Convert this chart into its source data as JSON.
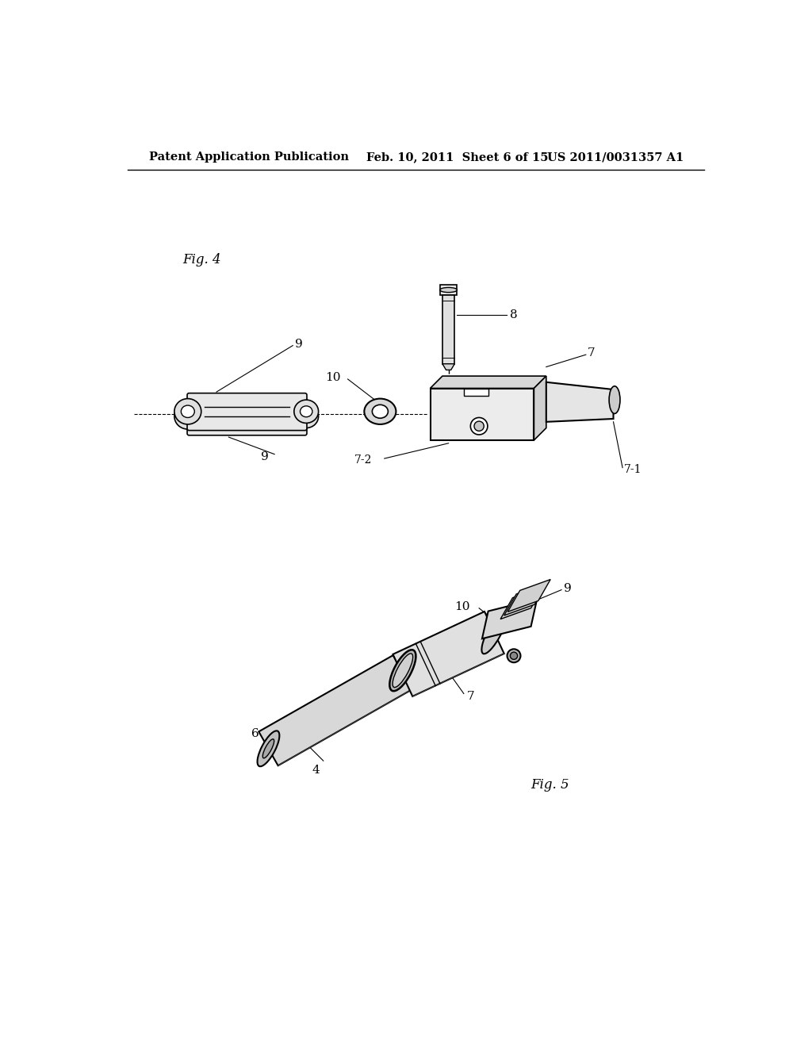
{
  "background_color": "#ffffff",
  "header_left": "Patent Application Publication",
  "header_center": "Feb. 10, 2011  Sheet 6 of 15",
  "header_right": "US 2011/0031357 A1",
  "header_fontsize": 10.5,
  "fig4_label": "Fig. 4",
  "fig5_label": "Fig. 5",
  "label_fontsize": 12,
  "annot_fontsize": 11,
  "page_width": 10.24,
  "page_height": 13.2,
  "dpi": 100
}
